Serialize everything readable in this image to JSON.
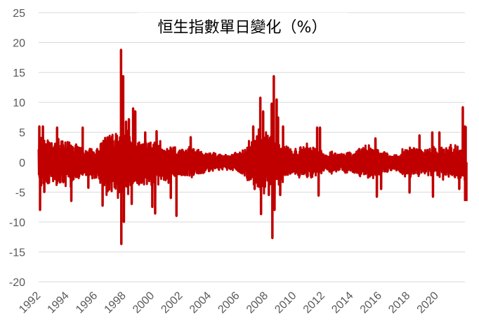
{
  "chart_data": {
    "type": "line",
    "title": "恒生指數單日變化（%）",
    "xlabel": "",
    "ylabel": "",
    "ylim": [
      -20,
      25
    ],
    "yticks": [
      25,
      20,
      15,
      10,
      5,
      0,
      -5,
      -10,
      -15,
      -20
    ],
    "xlim": [
      1992,
      2022
    ],
    "xticks": [
      "1992",
      "1994",
      "1996",
      "1998",
      "2000",
      "2002",
      "2004",
      "2006",
      "2008",
      "2010",
      "2012",
      "2014",
      "2016",
      "2018",
      "2020"
    ],
    "grid": true,
    "legend": "none",
    "color": "#c00000",
    "volatility_profile": {
      "x": [
        1992,
        1993,
        1994,
        1995,
        1996,
        1997,
        1998,
        1999,
        2000,
        2001,
        2002,
        2003,
        2004,
        2005,
        2006,
        2007,
        2008,
        2009,
        2010,
        2011,
        2012,
        2013,
        2014,
        2015,
        2016,
        2017,
        2018,
        2019,
        2020,
        2021,
        2022
      ],
      "amplitude": [
        4.0,
        3.5,
        3.8,
        2.5,
        2.2,
        5.5,
        5.0,
        3.5,
        3.5,
        3.0,
        2.2,
        2.2,
        1.5,
        1.2,
        1.5,
        3.5,
        5.0,
        3.0,
        2.0,
        2.8,
        1.8,
        1.5,
        1.5,
        2.8,
        2.0,
        1.2,
        2.5,
        2.0,
        2.5,
        2.5,
        3.0
      ]
    },
    "spikes": [
      {
        "x": 1992.05,
        "y": 6.0
      },
      {
        "x": 1992.1,
        "y": -8.0
      },
      {
        "x": 1992.3,
        "y": 6.0
      },
      {
        "x": 1992.4,
        "y": -5.0
      },
      {
        "x": 1993.3,
        "y": 5.8
      },
      {
        "x": 1994.3,
        "y": -6.5
      },
      {
        "x": 1995.1,
        "y": 5.8
      },
      {
        "x": 1995.5,
        "y": -4.3
      },
      {
        "x": 1996.5,
        "y": -7.3
      },
      {
        "x": 1997.8,
        "y": 18.8
      },
      {
        "x": 1997.82,
        "y": -13.7
      },
      {
        "x": 1997.95,
        "y": 14.4
      },
      {
        "x": 1998.0,
        "y": -10.0
      },
      {
        "x": 1998.15,
        "y": 6.8
      },
      {
        "x": 1998.35,
        "y": 7.2
      },
      {
        "x": 1998.55,
        "y": -7.0
      },
      {
        "x": 1998.65,
        "y": 9.0
      },
      {
        "x": 1998.8,
        "y": 8.5
      },
      {
        "x": 1999.5,
        "y": 5.0
      },
      {
        "x": 2000.0,
        "y": -7.5
      },
      {
        "x": 2000.2,
        "y": -8.6
      },
      {
        "x": 2000.3,
        "y": 5.2
      },
      {
        "x": 2001.3,
        "y": -6.0
      },
      {
        "x": 2001.7,
        "y": -9.0
      },
      {
        "x": 2002.7,
        "y": 4.2
      },
      {
        "x": 2007.1,
        "y": 6.0
      },
      {
        "x": 2007.2,
        "y": -4.5
      },
      {
        "x": 2007.5,
        "y": 5.5
      },
      {
        "x": 2007.6,
        "y": 10.8
      },
      {
        "x": 2007.65,
        "y": -8.7
      },
      {
        "x": 2007.8,
        "y": 8.5
      },
      {
        "x": 2008.2,
        "y": -5.5
      },
      {
        "x": 2008.4,
        "y": 9.8
      },
      {
        "x": 2008.45,
        "y": -12.7
      },
      {
        "x": 2008.55,
        "y": 14.4
      },
      {
        "x": 2008.6,
        "y": -8.0
      },
      {
        "x": 2008.75,
        "y": 10.5
      },
      {
        "x": 2008.85,
        "y": 7.5
      },
      {
        "x": 2009.0,
        "y": -5.5
      },
      {
        "x": 2009.2,
        "y": 6.0
      },
      {
        "x": 2011.6,
        "y": 5.8
      },
      {
        "x": 2011.7,
        "y": -5.6
      },
      {
        "x": 2011.8,
        "y": 5.8
      },
      {
        "x": 2015.7,
        "y": 4.0
      },
      {
        "x": 2015.8,
        "y": -5.8
      },
      {
        "x": 2016.1,
        "y": -4.5
      },
      {
        "x": 2018.1,
        "y": -5.1
      },
      {
        "x": 2018.8,
        "y": 4.5
      },
      {
        "x": 2019.7,
        "y": 5.0
      },
      {
        "x": 2019.75,
        "y": -5.8
      },
      {
        "x": 2020.2,
        "y": 5.0
      },
      {
        "x": 2021.6,
        "y": -4.5
      },
      {
        "x": 2021.85,
        "y": 9.2
      },
      {
        "x": 2022.05,
        "y": 6.0
      },
      {
        "x": 2022.1,
        "y": -6.5
      }
    ]
  }
}
